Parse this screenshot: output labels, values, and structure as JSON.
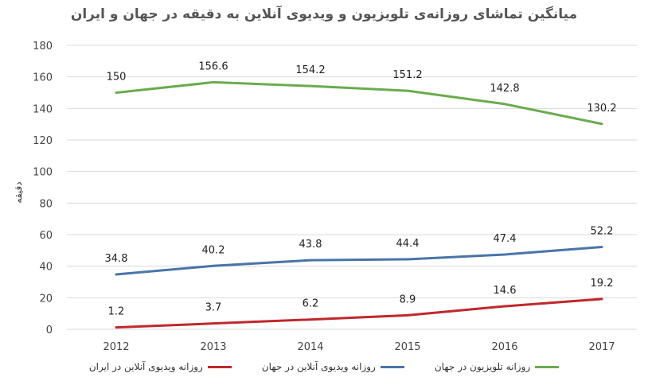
{
  "chart_data": {
    "type": "line",
    "title": "میانگین تماشای روزانه‌ی تلویزیون و ویدیوی آنلاین به دقیقه در جهان و ایران",
    "xlabel": "",
    "ylabel": "دقیقه",
    "categories": [
      "2012",
      "2013",
      "2014",
      "2015",
      "2016",
      "2017"
    ],
    "ylim": [
      0,
      180
    ],
    "yticks": [
      "0",
      "20",
      "40",
      "60",
      "80",
      "100",
      "120",
      "140",
      "160",
      "180"
    ],
    "grid": true,
    "legend_position": "bottom",
    "series": [
      {
        "name": "روزانه تلویزیون در جهان",
        "color": "#6aab4f",
        "values": [
          150,
          156.6,
          154.2,
          151.2,
          142.8,
          130.2
        ],
        "labels": [
          "150",
          "156.6",
          "154.2",
          "151.2",
          "142.8",
          "130.2"
        ]
      },
      {
        "name": "روزانه ویدیوی آنلاین در جهان",
        "color": "#4a74a8",
        "values": [
          34.8,
          40.2,
          43.8,
          44.4,
          47.4,
          52.2
        ],
        "labels": [
          "34.8",
          "40.2",
          "43.8",
          "44.4",
          "47.4",
          "52.2"
        ]
      },
      {
        "name": "روزانه ویدیوی آنلاین در ایران",
        "color": "#c0282c",
        "values": [
          1.2,
          3.7,
          6.2,
          8.9,
          14.6,
          19.2
        ],
        "labels": [
          "1.2",
          "3.7",
          "6.2",
          "8.9",
          "14.6",
          "19.2"
        ]
      }
    ]
  }
}
